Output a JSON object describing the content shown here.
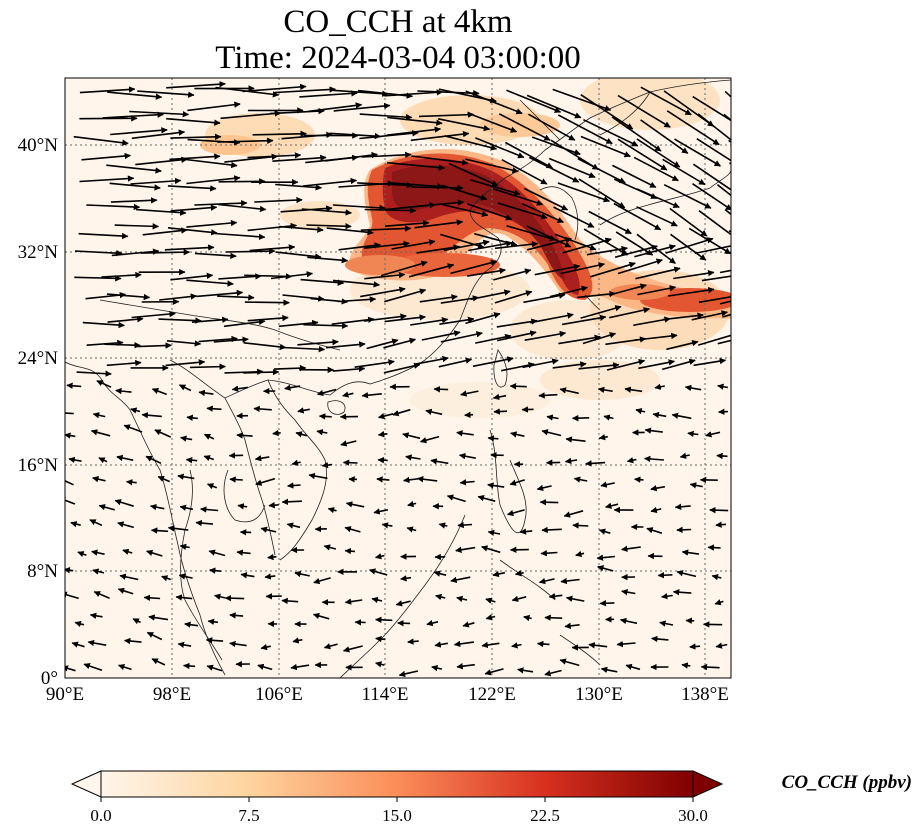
{
  "title": {
    "line1": "CO_CCH at 4km",
    "line2": "Time: 2024-03-04 03:00:00"
  },
  "map": {
    "lon_range": [
      90,
      139.8
    ],
    "lat_range": [
      0,
      45
    ],
    "lon_ticks": [
      "90°E",
      "98°E",
      "106°E",
      "114°E",
      "122°E",
      "130°E",
      "138°E"
    ],
    "lat_ticks": [
      "0°",
      "8°N",
      "16°N",
      "24°N",
      "32°N",
      "40°N"
    ],
    "gridlines": true,
    "field": "CO_CCH",
    "wind_vectors": true,
    "plume": "high CO band from 114°E–128°E at 28°N–38°N extending east to 138°E near 27°N"
  },
  "colorbar": {
    "label": "CO_CCH (ppbv)",
    "ticks": [
      "0.0",
      "7.5",
      "15.0",
      "22.5",
      "30.0"
    ],
    "min": 0,
    "max": 30,
    "colors": [
      "#fff5eb",
      "#fdd49e",
      "#fc8d59",
      "#d7301f",
      "#7f0000"
    ]
  }
}
